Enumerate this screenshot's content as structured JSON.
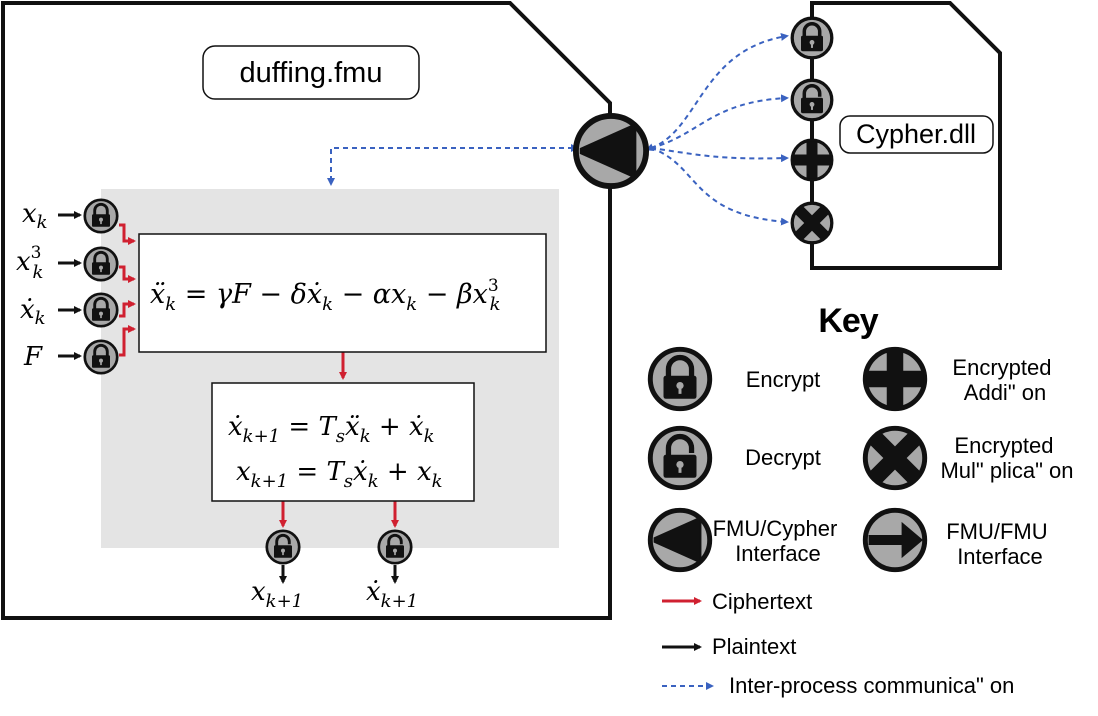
{
  "fmu_label": "duffing.fmu",
  "dll_label": "Cypher.dll",
  "key_title": "Key",
  "inputs": {
    "x_k": "x",
    "x_k_sub": "k",
    "x_k3": "x",
    "x_k3_sub": "k",
    "x_k3_sup": "3",
    "xdot_k": "ẋ",
    "xdot_k_sub": "k",
    "F": "F"
  },
  "equation1": {
    "lhs": "ẍ",
    "lhs_sub": "k",
    "rhs_a": " = γF − δẋ",
    "rhs_a_sub": "k",
    "rhs_b": " − αx",
    "rhs_b_sub": "k",
    "rhs_c": " − βx",
    "rhs_c_sub": "k",
    "rhs_c_sup": "3"
  },
  "equation2": {
    "line1_lhs": "ẋ",
    "line1_lhs_sub": "k+1",
    "line1_mid": " = T",
    "line1_mid_sub": "s",
    "line1_mid2": "ẍ",
    "line1_mid2_sub": "k",
    "line1_end": " + ẋ",
    "line1_end_sub": "k",
    "line2_lhs": "x",
    "line2_lhs_sub": "k+1",
    "line2_mid": " = T",
    "line2_mid_sub": "s",
    "line2_mid2": "ẋ",
    "line2_mid2_sub": "k",
    "line2_end": " + x",
    "line2_end_sub": "k"
  },
  "outputs": {
    "out1": "x",
    "out1_sub": "k+1",
    "out2": "ẋ",
    "out2_sub": "k+1"
  },
  "key": {
    "encrypt": "Encrypt",
    "decrypt": "Decrypt",
    "add_line1": "Encrypted",
    "add_line2": "Addi\" on",
    "mul_line1": "Encrypted",
    "mul_line2": "Mul\" plica\" on",
    "fmu_cypher_line1": "FMU/Cypher",
    "fmu_cypher_line2": "Interface",
    "fmu_fmu_line1": "FMU/FMU",
    "fmu_fmu_line2": "Interface",
    "ciphertext": "Ciphertext",
    "plaintext": "Plaintext",
    "ipc": "Inter-process communica\" on"
  },
  "colors": {
    "ciphertext": "#d02030",
    "plaintext": "#111111",
    "ipc": "#3a62c0",
    "icon_fill": "#a8a8a8",
    "panel": "#e4e4e4"
  }
}
